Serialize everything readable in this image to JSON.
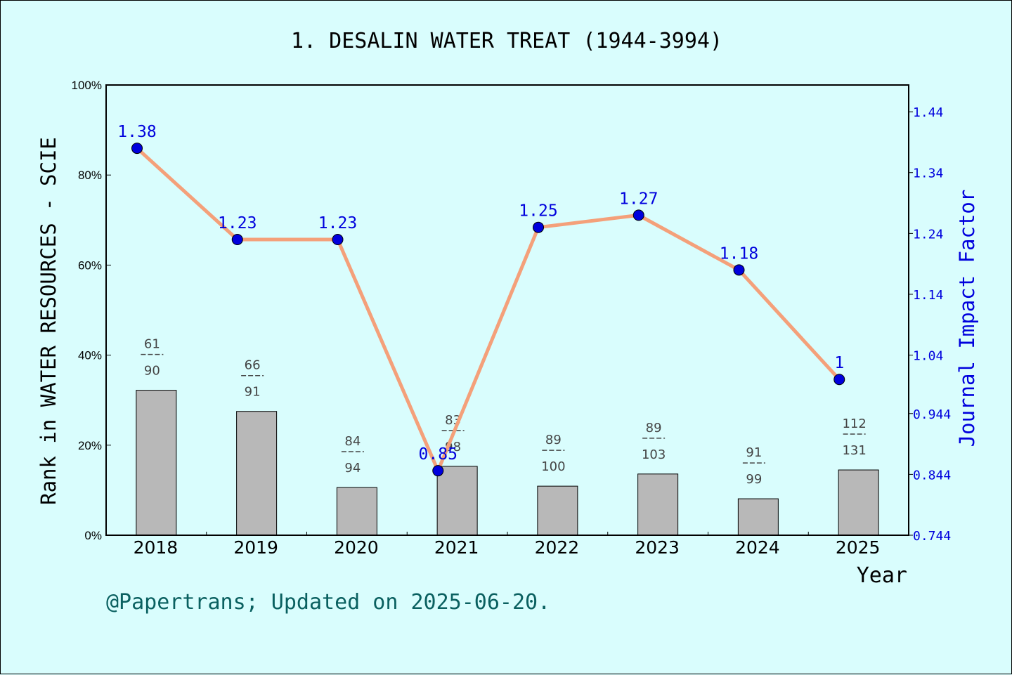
{
  "chart_data": {
    "type": "bar",
    "title": "1. DESALIN WATER TREAT (1944-3994)",
    "xlabel": "Year",
    "ylabel": "Rank in WATER RESOURCES - SCIE",
    "y2label": "Journal Impact Factor",
    "categories": [
      "2018",
      "2019",
      "2020",
      "2021",
      "2022",
      "2023",
      "2024",
      "2025"
    ],
    "ylim": [
      0,
      100
    ],
    "y_ticks": [
      "0%",
      "20%",
      "40%",
      "60%",
      "80%",
      "100%"
    ],
    "y2lim": [
      0.744,
      1.484
    ],
    "y2_ticks": [
      "0.744",
      "0.844",
      "0.944",
      "1.04",
      "1.14",
      "1.24",
      "1.34",
      "1.44"
    ],
    "series": [
      {
        "kind": "bar",
        "values": [
          32.2,
          27.5,
          10.6,
          15.3,
          10.9,
          13.6,
          8.1,
          14.5
        ],
        "ranks": [
          [
            "61",
            "90"
          ],
          [
            "66",
            "91"
          ],
          [
            "84",
            "94"
          ],
          [
            "83",
            "98"
          ],
          [
            "89",
            "100"
          ],
          [
            "89",
            "103"
          ],
          [
            "91",
            "99"
          ],
          [
            "112",
            "131"
          ]
        ],
        "color": "#b8b8b8"
      },
      {
        "kind": "line",
        "values": [
          1.38,
          1.23,
          1.23,
          0.85,
          1.25,
          1.27,
          1.18,
          1
        ],
        "labels": [
          "1.38",
          "1.23",
          "1.23",
          "0.85",
          "1.25",
          "1.27",
          "1.18",
          "1"
        ],
        "color": "#f4a07a",
        "marker_color": "#0000dd"
      }
    ],
    "grid": false
  },
  "footer": "@Papertrans; Updated on 2025-06-20."
}
